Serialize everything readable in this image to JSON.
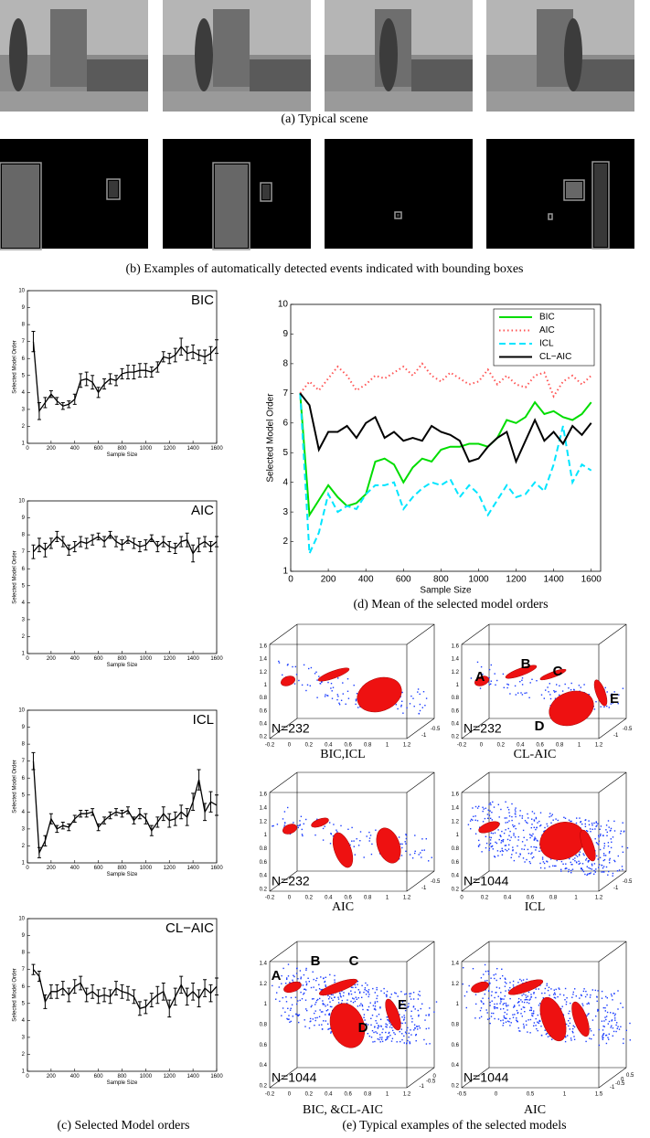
{
  "panel_a": {
    "caption": "(a) Typical scene"
  },
  "panel_b": {
    "caption": "(b) Examples of automatically detected events indicated with bounding boxes"
  },
  "panel_c": {
    "caption": "(c) Selected Model orders",
    "x": [
      50,
      100,
      150,
      200,
      250,
      300,
      350,
      400,
      450,
      500,
      550,
      600,
      650,
      700,
      750,
      800,
      850,
      900,
      950,
      1000,
      1050,
      1100,
      1150,
      1200,
      1250,
      1300,
      1350,
      1400,
      1450,
      1500,
      1550,
      1600
    ],
    "charts": [
      {
        "type": "line",
        "label": "BIC",
        "xlabel": "Sample Size",
        "ylabel": "Selected Model Order",
        "xlim": [
          0,
          1600
        ],
        "ylim": [
          1,
          10
        ],
        "xticks": [
          0,
          200,
          400,
          600,
          800,
          1000,
          1200,
          1400,
          1600
        ],
        "yticks": [
          1,
          2,
          3,
          4,
          5,
          6,
          7,
          8,
          9,
          10
        ],
        "values": [
          7.0,
          2.9,
          3.4,
          3.9,
          3.5,
          3.2,
          3.3,
          3.6,
          4.7,
          4.8,
          4.6,
          4.0,
          4.5,
          4.8,
          4.7,
          5.1,
          5.2,
          5.2,
          5.3,
          5.3,
          5.2,
          5.5,
          6.1,
          6.0,
          6.2,
          6.7,
          6.3,
          6.4,
          6.2,
          6.1,
          6.3,
          6.7
        ],
        "errors": [
          0.6,
          0.5,
          0.3,
          0.2,
          0.2,
          0.2,
          0.2,
          0.3,
          0.4,
          0.4,
          0.4,
          0.3,
          0.3,
          0.3,
          0.3,
          0.3,
          0.4,
          0.4,
          0.4,
          0.4,
          0.3,
          0.3,
          0.3,
          0.3,
          0.4,
          0.5,
          0.4,
          0.4,
          0.3,
          0.4,
          0.4,
          0.4
        ]
      },
      {
        "type": "line",
        "label": "AIC",
        "xlabel": "Sample Size",
        "ylabel": "Selected Model Order",
        "xlim": [
          0,
          1600
        ],
        "ylim": [
          1,
          10
        ],
        "xticks": [
          0,
          200,
          400,
          600,
          800,
          1000,
          1200,
          1400,
          1600
        ],
        "yticks": [
          1,
          2,
          3,
          4,
          5,
          6,
          7,
          8,
          9,
          10
        ],
        "values": [
          7.0,
          7.4,
          7.1,
          7.5,
          7.9,
          7.6,
          7.1,
          7.3,
          7.6,
          7.5,
          7.7,
          7.9,
          7.6,
          8.0,
          7.6,
          7.4,
          7.7,
          7.5,
          7.3,
          7.4,
          7.8,
          7.3,
          7.6,
          7.3,
          7.2,
          7.6,
          7.7,
          6.9,
          7.4,
          7.6,
          7.3,
          7.6
        ],
        "errors": [
          0.4,
          0.4,
          0.4,
          0.3,
          0.3,
          0.3,
          0.3,
          0.3,
          0.3,
          0.3,
          0.3,
          0.2,
          0.3,
          0.2,
          0.3,
          0.3,
          0.2,
          0.3,
          0.3,
          0.3,
          0.2,
          0.3,
          0.3,
          0.3,
          0.3,
          0.3,
          0.4,
          0.5,
          0.4,
          0.3,
          0.3,
          0.3
        ]
      },
      {
        "type": "line",
        "label": "ICL",
        "xlabel": "Sample Size",
        "ylabel": "Selected Model Order",
        "xlim": [
          0,
          1600
        ],
        "ylim": [
          1,
          10
        ],
        "xticks": [
          0,
          200,
          400,
          600,
          800,
          1000,
          1200,
          1400,
          1600
        ],
        "yticks": [
          1,
          2,
          3,
          4,
          5,
          6,
          7,
          8,
          9,
          10
        ],
        "values": [
          7.0,
          1.6,
          2.3,
          3.6,
          3.0,
          3.2,
          3.1,
          3.6,
          3.9,
          3.9,
          4.0,
          3.1,
          3.5,
          3.8,
          4.0,
          3.9,
          4.1,
          3.5,
          3.9,
          3.6,
          2.9,
          3.4,
          3.9,
          3.5,
          3.6,
          4.0,
          3.7,
          4.6,
          5.9,
          4.0,
          4.6,
          4.4
        ],
        "errors": [
          0.5,
          0.3,
          0.3,
          0.3,
          0.2,
          0.2,
          0.2,
          0.2,
          0.2,
          0.2,
          0.2,
          0.2,
          0.2,
          0.2,
          0.2,
          0.2,
          0.2,
          0.2,
          0.3,
          0.3,
          0.3,
          0.3,
          0.4,
          0.4,
          0.4,
          0.4,
          0.5,
          0.5,
          0.6,
          0.5,
          0.6,
          0.6
        ]
      },
      {
        "type": "line",
        "label": "CL−AIC",
        "xlabel": "Sample Size",
        "ylabel": "Selected Model Order",
        "xlim": [
          0,
          1600
        ],
        "ylim": [
          1,
          10
        ],
        "xticks": [
          0,
          200,
          400,
          600,
          800,
          1000,
          1200,
          1400,
          1600
        ],
        "yticks": [
          1,
          2,
          3,
          4,
          5,
          6,
          7,
          8,
          9,
          10
        ],
        "values": [
          7.0,
          6.6,
          5.1,
          5.7,
          5.7,
          5.9,
          5.5,
          6.0,
          6.2,
          5.5,
          5.7,
          5.4,
          5.5,
          5.4,
          5.9,
          5.7,
          5.6,
          5.4,
          4.7,
          4.8,
          5.2,
          5.5,
          5.7,
          4.7,
          5.4,
          6.1,
          5.4,
          5.7,
          5.3,
          5.9,
          5.6,
          6.0
        ],
        "errors": [
          0.3,
          0.3,
          0.4,
          0.4,
          0.4,
          0.4,
          0.4,
          0.4,
          0.4,
          0.4,
          0.4,
          0.4,
          0.4,
          0.4,
          0.4,
          0.4,
          0.4,
          0.4,
          0.4,
          0.4,
          0.4,
          0.5,
          0.5,
          0.5,
          0.5,
          0.5,
          0.5,
          0.5,
          0.5,
          0.5,
          0.5,
          0.5
        ]
      }
    ]
  },
  "panel_d": {
    "caption": "(d) Mean of the selected model orders",
    "chart": {
      "type": "line",
      "xlabel": "Sample Size",
      "ylabel": "Selected Model Order",
      "xlim": [
        0,
        1650
      ],
      "ylim": [
        1,
        10
      ],
      "xticks": [
        0,
        200,
        400,
        600,
        800,
        1000,
        1200,
        1400,
        1600
      ],
      "yticks": [
        1,
        2,
        3,
        4,
        5,
        6,
        7,
        8,
        9,
        10
      ],
      "legend": "upper right",
      "x": [
        50,
        100,
        150,
        200,
        250,
        300,
        350,
        400,
        450,
        500,
        550,
        600,
        650,
        700,
        750,
        800,
        850,
        900,
        950,
        1000,
        1050,
        1100,
        1150,
        1200,
        1250,
        1300,
        1350,
        1400,
        1450,
        1500,
        1550,
        1600
      ],
      "series": [
        {
          "name": "BIC",
          "color": "#00dd00",
          "style": "solid",
          "values": [
            7.0,
            2.9,
            3.4,
            3.9,
            3.5,
            3.2,
            3.3,
            3.6,
            4.7,
            4.8,
            4.6,
            4.0,
            4.5,
            4.8,
            4.7,
            5.1,
            5.2,
            5.2,
            5.3,
            5.3,
            5.2,
            5.5,
            6.1,
            6.0,
            6.2,
            6.7,
            6.3,
            6.4,
            6.2,
            6.1,
            6.3,
            6.7
          ]
        },
        {
          "name": "AIC",
          "color": "#ff5555",
          "style": "dotted",
          "values": [
            7.0,
            7.4,
            7.1,
            7.5,
            7.9,
            7.6,
            7.1,
            7.3,
            7.6,
            7.5,
            7.7,
            7.9,
            7.6,
            8.0,
            7.6,
            7.4,
            7.7,
            7.5,
            7.3,
            7.4,
            7.8,
            7.3,
            7.6,
            7.3,
            7.2,
            7.6,
            7.7,
            6.9,
            7.4,
            7.6,
            7.3,
            7.6
          ]
        },
        {
          "name": "ICL",
          "color": "#00e5ff",
          "style": "dashed",
          "values": [
            7.0,
            1.6,
            2.3,
            3.6,
            3.0,
            3.2,
            3.1,
            3.6,
            3.9,
            3.9,
            4.0,
            3.1,
            3.5,
            3.8,
            4.0,
            3.9,
            4.1,
            3.5,
            3.9,
            3.6,
            2.9,
            3.4,
            3.9,
            3.5,
            3.6,
            4.0,
            3.7,
            4.6,
            5.9,
            4.0,
            4.6,
            4.4
          ]
        },
        {
          "name": "CL−AIC",
          "color": "#000000",
          "style": "solid",
          "values": [
            7.0,
            6.6,
            5.1,
            5.7,
            5.7,
            5.9,
            5.5,
            6.0,
            6.2,
            5.5,
            5.7,
            5.4,
            5.5,
            5.4,
            5.9,
            5.7,
            5.6,
            5.4,
            4.7,
            4.8,
            5.2,
            5.5,
            5.7,
            4.7,
            5.4,
            6.1,
            5.4,
            5.7,
            5.3,
            5.9,
            5.6,
            6.0
          ]
        }
      ]
    }
  },
  "panel_e": {
    "caption": "(e) Typical examples of the selected models",
    "plots": [
      {
        "caption": "BIC,ICL",
        "n_label": "N=232",
        "letters": [],
        "zticks": [
          "1.6",
          "1.4",
          "1.2",
          "1",
          "0.8",
          "0.6",
          "0.4",
          "0.2"
        ],
        "xticks": [
          "-0.2",
          "0",
          "0.2",
          "0.4",
          "0.6",
          "0.8",
          "1",
          "1.2"
        ],
        "yticks": [
          "-0.5",
          "-1"
        ]
      },
      {
        "caption": "CL-AIC",
        "n_label": "N=232",
        "letters": [
          "A",
          "B",
          "C",
          "D",
          "E"
        ],
        "zticks": [
          "1.6",
          "1.4",
          "1.2",
          "1",
          "0.8",
          "0.6",
          "0.4",
          "0.2"
        ],
        "xticks": [
          "-0.2",
          "0",
          "0.2",
          "0.4",
          "0.6",
          "0.8",
          "1",
          "1.2"
        ],
        "yticks": [
          "-0.5",
          "-1"
        ]
      },
      {
        "caption": "AIC",
        "n_label": "N=232",
        "letters": [],
        "zticks": [
          "1.6",
          "1.4",
          "1.2",
          "1",
          "0.8",
          "0.6",
          "0.4",
          "0.2"
        ],
        "xticks": [
          "-0.2",
          "0",
          "0.2",
          "0.4",
          "0.6",
          "0.8",
          "1",
          "1.2"
        ],
        "yticks": [
          "-0.5",
          "-1"
        ]
      },
      {
        "caption": "ICL",
        "n_label": "N=1044",
        "letters": [],
        "zticks": [
          "1.6",
          "1.4",
          "1.2",
          "1",
          "0.8",
          "0.6",
          "0.4",
          "0.2"
        ],
        "xticks": [
          "0",
          "0.2",
          "0.4",
          "0.6",
          "0.8",
          "1",
          "1.2"
        ],
        "yticks": [
          "-0.5",
          "-1"
        ]
      },
      {
        "caption": "BIC, &CL-AIC",
        "n_label": "N=1044",
        "letters": [
          "A",
          "B",
          "C",
          "D",
          "E"
        ],
        "zticks": [
          "1.4",
          "1.2",
          "1",
          "0.8",
          "0.6",
          "0.4",
          "0.2"
        ],
        "xticks": [
          "-0.2",
          "0",
          "0.2",
          "0.4",
          "0.6",
          "0.8",
          "1",
          "1.2"
        ],
        "yticks": [
          "0",
          "-0.5",
          "-1"
        ]
      },
      {
        "caption": "AIC",
        "n_label": "N=1044",
        "letters": [],
        "zticks": [
          "1.4",
          "1.2",
          "1",
          "0.8",
          "0.6",
          "0.4",
          "0.2"
        ],
        "xticks": [
          "-0.5",
          "0",
          "0.5",
          "1",
          "1.5"
        ],
        "yticks": [
          "0.5",
          "0",
          "-0.5",
          "-1"
        ]
      }
    ]
  }
}
